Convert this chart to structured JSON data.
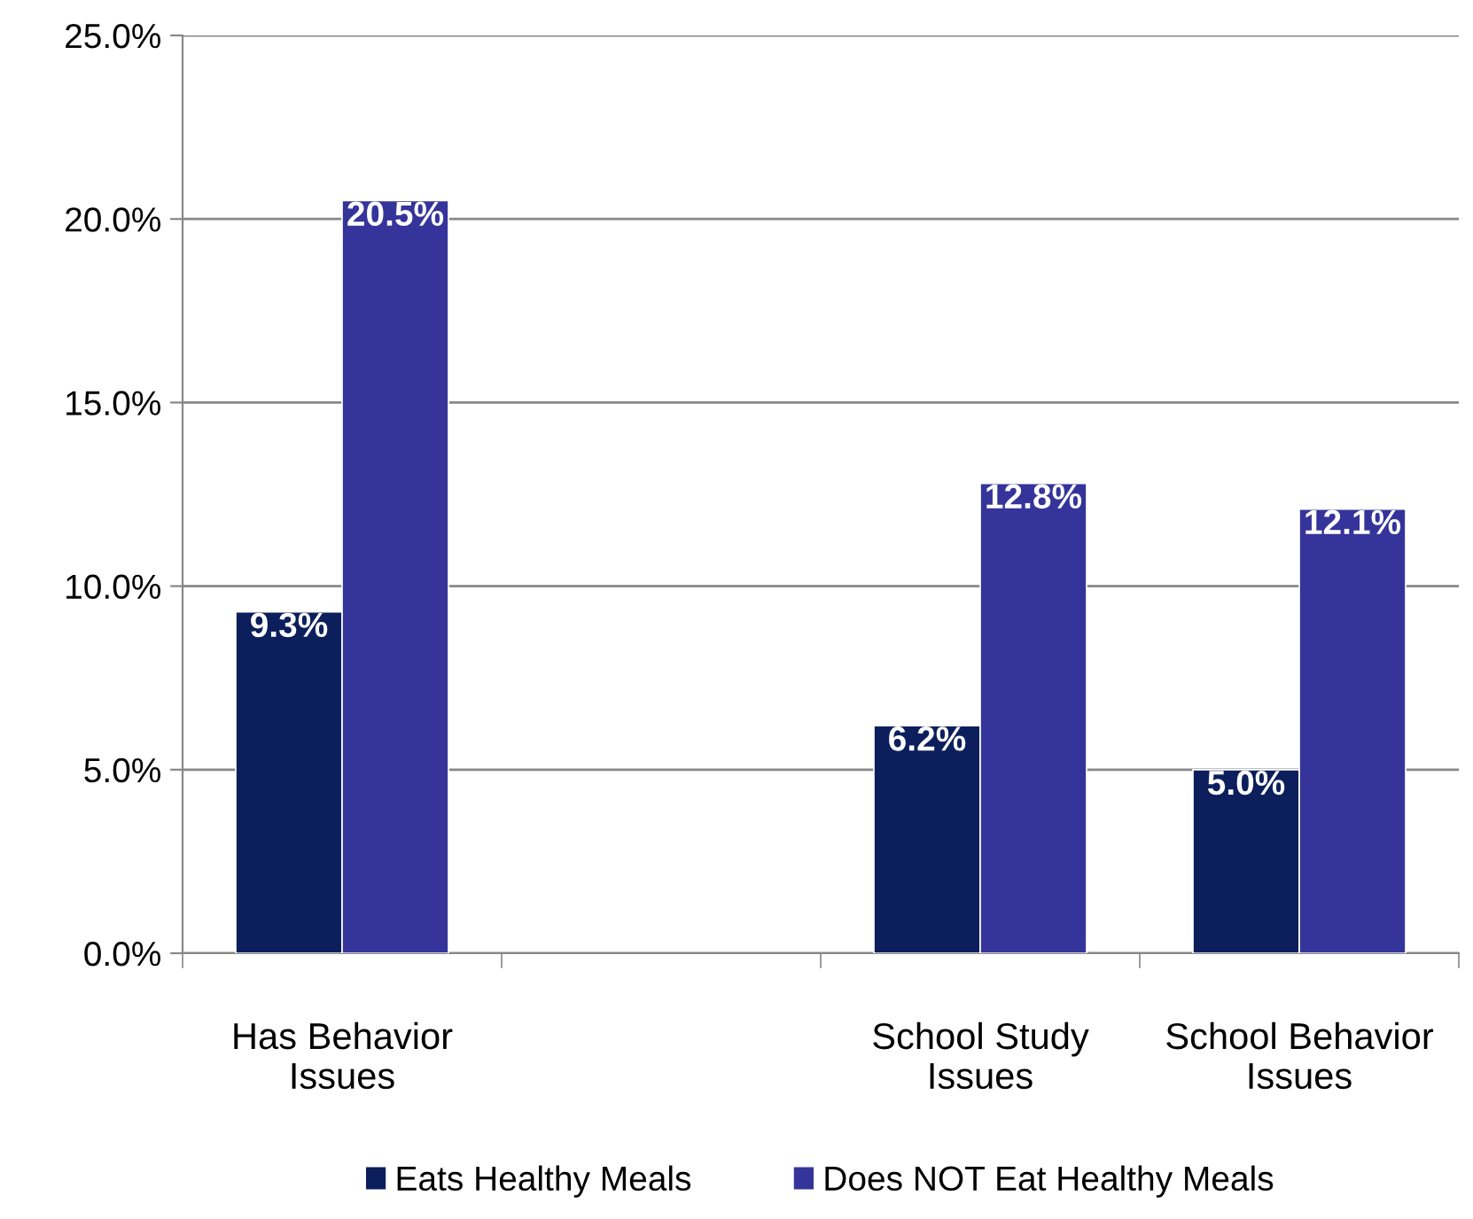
{
  "chart_data": {
    "type": "bar",
    "categories": [
      "Has Behavior\nIssues",
      null,
      "School Study\nIssues",
      "School Behavior\nIssues"
    ],
    "series": [
      {
        "name": "Eats Healthy Meals",
        "color": "#0c1f5c",
        "values": [
          9.3,
          null,
          6.2,
          5.0
        ],
        "value_labels": [
          "9.3%",
          null,
          "6.2%",
          "5.0%"
        ]
      },
      {
        "name": "Does NOT Eat Healthy Meals",
        "color": "#35349a",
        "values": [
          20.5,
          null,
          12.8,
          12.1
        ],
        "value_labels": [
          "20.5%",
          null,
          "12.8%",
          "12.1%"
        ]
      }
    ],
    "ylim": [
      0,
      25
    ],
    "yticks": [
      {
        "value": 0,
        "label": "0.0%"
      },
      {
        "value": 5,
        "label": "5.0%"
      },
      {
        "value": 10,
        "label": "10.0%"
      },
      {
        "value": 15,
        "label": "15.0%"
      },
      {
        "value": 20,
        "label": "20.0%"
      },
      {
        "value": 25,
        "label": "25.0%"
      }
    ],
    "grid": "y",
    "legend": "bottom"
  }
}
